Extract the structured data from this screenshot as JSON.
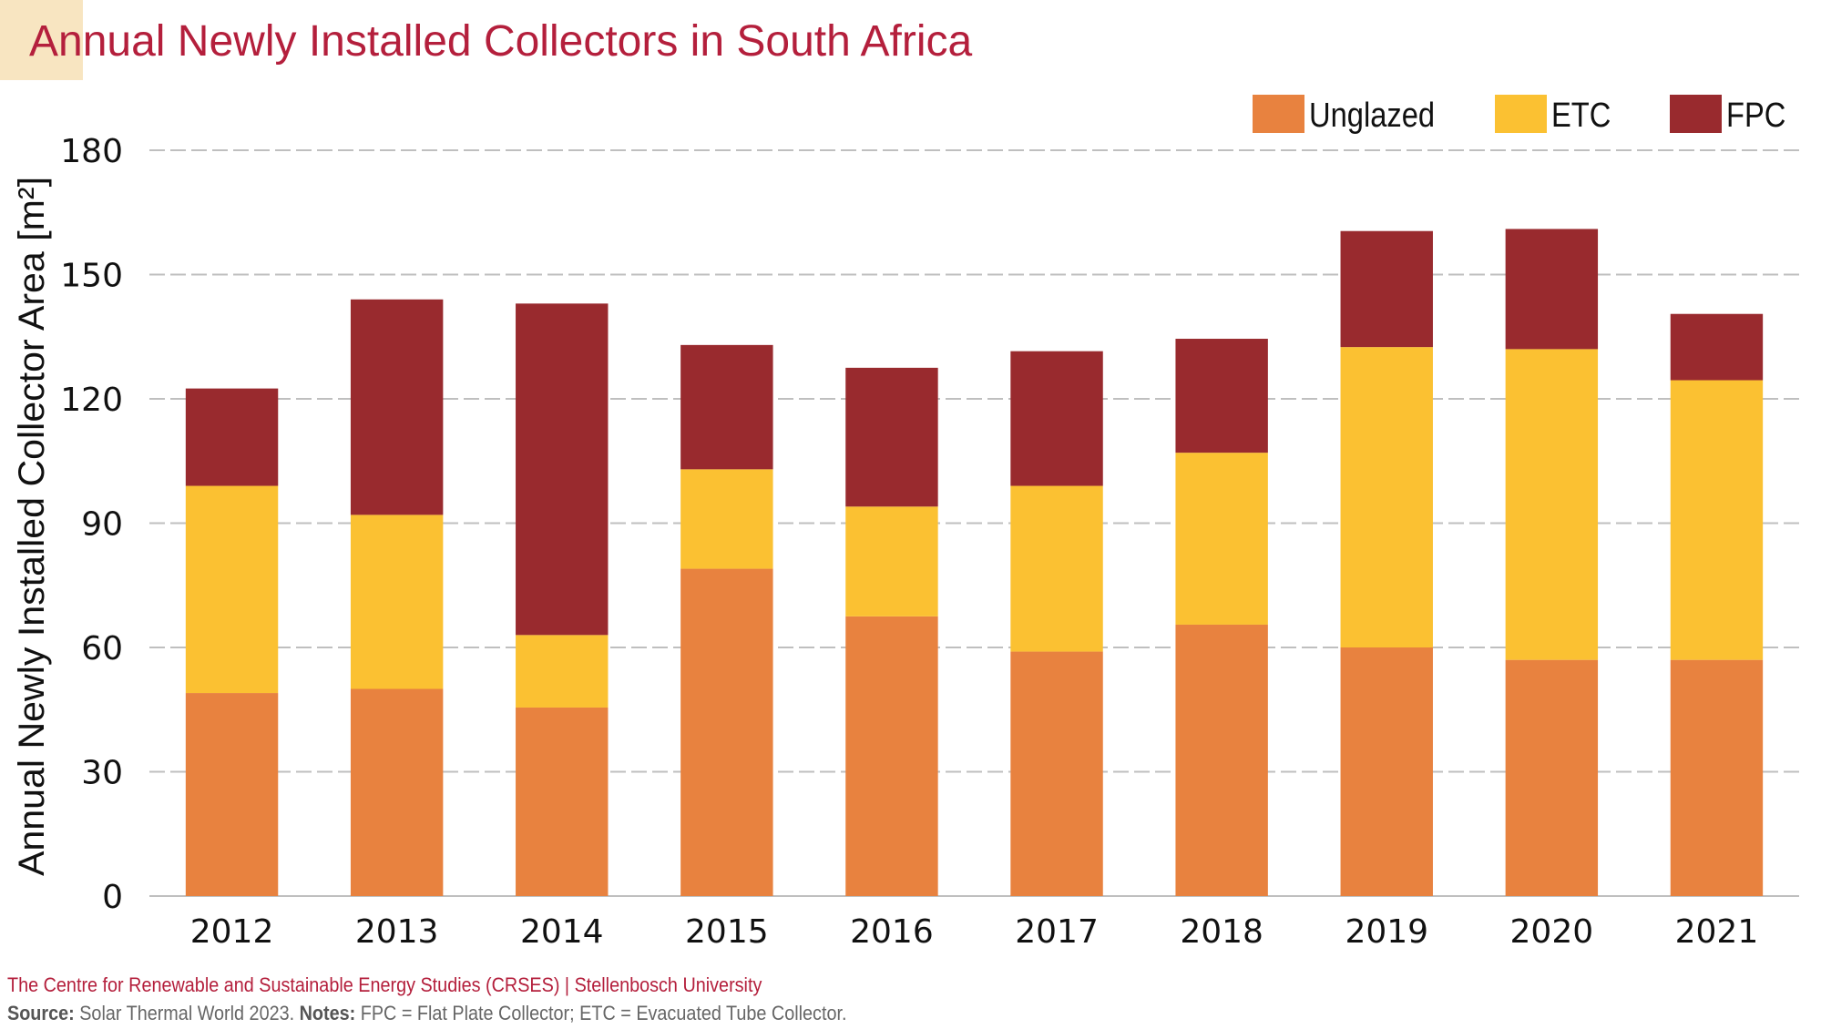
{
  "header": {
    "title": "Annual Newly Installed Collectors in South Africa"
  },
  "footer": {
    "credit": "The Centre for Renewable and Sustainable Energy Studies (CRSES) | Stellenbosch University",
    "source_label": "Source:",
    "source_text": " Solar Thermal World 2023. ",
    "notes_label": "Notes:",
    "notes_text": " FPC = Flat Plate Collector; ETC = Evacuated Tube Collector."
  },
  "colors": {
    "title": "#b41f3c",
    "accent_block": "#f8e5c1",
    "unglazed": "#e8823f",
    "etc": "#fbc132",
    "fpc": "#992a2e",
    "grid": "#bfbfbf",
    "axis": "#bfbfbf"
  },
  "chart_data": {
    "type": "bar",
    "stacked": true,
    "title": "Annual Newly Installed Collectors in South Africa",
    "xlabel": "",
    "ylabel": "Annual Newly Installed Collector Area [m²]",
    "ylim": [
      0,
      180
    ],
    "yticks": [
      0,
      30,
      60,
      90,
      120,
      150,
      180
    ],
    "grid": true,
    "legend_position": "top-right",
    "categories": [
      "2012",
      "2013",
      "2014",
      "2015",
      "2016",
      "2017",
      "2018",
      "2019",
      "2020",
      "2021"
    ],
    "series": [
      {
        "name": "Unglazed",
        "color": "#e8823f",
        "values": [
          49,
          50,
          45.5,
          79,
          67.5,
          59,
          65.5,
          60,
          57,
          57
        ]
      },
      {
        "name": "ETC",
        "color": "#fbc132",
        "values": [
          50,
          42,
          17.5,
          24,
          26.5,
          40,
          41.5,
          72.5,
          75,
          67.5
        ]
      },
      {
        "name": "FPC",
        "color": "#992a2e",
        "values": [
          23.5,
          52,
          80,
          30,
          33.5,
          32.5,
          27.5,
          28,
          29,
          16
        ]
      }
    ],
    "totals": [
      122.5,
      144,
      143,
      133,
      127.5,
      131.5,
      134.5,
      160.5,
      161,
      140.5
    ]
  }
}
